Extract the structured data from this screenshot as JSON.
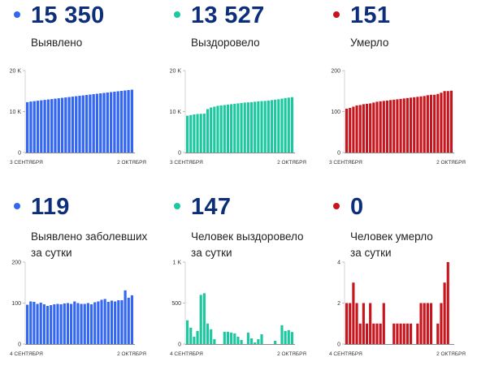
{
  "panels": [
    {
      "value": "15 350",
      "label_lines": [
        "Выявлено"
      ],
      "color": "#3367f2",
      "chart_data": {
        "type": "bar",
        "x_start_label": "3 СЕНТЯБРЯ",
        "x_end_label": "2 ОКТЯБРЯ",
        "yticks": [
          {
            "v": 0,
            "t": "0"
          },
          {
            "v": 10000,
            "t": "10 K"
          },
          {
            "v": 20000,
            "t": "20 K"
          }
        ],
        "ylim": [
          0,
          20000
        ],
        "values": [
          12300,
          12450,
          12550,
          12650,
          12750,
          12850,
          12950,
          13050,
          13150,
          13250,
          13350,
          13450,
          13550,
          13650,
          13750,
          13850,
          13950,
          14050,
          14150,
          14250,
          14350,
          14450,
          14550,
          14650,
          14750,
          14850,
          14950,
          15050,
          15150,
          15250,
          15350
        ]
      }
    },
    {
      "value": "13 527",
      "label_lines": [
        "Выздоровело"
      ],
      "color": "#1dc7a0",
      "chart_data": {
        "type": "bar",
        "x_start_label": "3 СЕНТЯБРЯ",
        "x_end_label": "2 ОКТЯБРЯ",
        "yticks": [
          {
            "v": 0,
            "t": "0"
          },
          {
            "v": 10000,
            "t": "10 K"
          },
          {
            "v": 20000,
            "t": "20 K"
          }
        ],
        "ylim": [
          0,
          20000
        ],
        "values": [
          9000,
          9150,
          9300,
          9400,
          9450,
          9500,
          10600,
          11000,
          11200,
          11400,
          11500,
          11600,
          11700,
          11800,
          11900,
          12000,
          12100,
          12200,
          12250,
          12300,
          12400,
          12500,
          12550,
          12600,
          12700,
          12800,
          12900,
          13000,
          13150,
          13300,
          13400,
          13527
        ]
      }
    },
    {
      "value": "151",
      "label_lines": [
        "Умерло"
      ],
      "color": "#c7151e",
      "chart_data": {
        "type": "bar",
        "x_start_label": "3 СЕНТЯБРЯ",
        "x_end_label": "2 ОКТЯБРЯ",
        "yticks": [
          {
            "v": 0,
            "t": "0"
          },
          {
            "v": 100,
            "t": "100"
          },
          {
            "v": 200,
            "t": "200"
          }
        ],
        "ylim": [
          0,
          200
        ],
        "values": [
          107,
          109,
          112,
          115,
          116,
          118,
          119,
          120,
          122,
          124,
          125,
          126,
          127,
          128,
          129,
          130,
          131,
          132,
          133,
          134,
          135,
          136,
          137,
          138,
          140,
          141,
          141,
          143,
          146,
          150,
          150,
          151
        ]
      }
    },
    {
      "value": "119",
      "label_lines": [
        "Выявлено заболевших",
        "за сутки"
      ],
      "color": "#3367f2",
      "chart_data": {
        "type": "bar",
        "x_start_label": "4 СЕНТЯБРЯ",
        "x_end_label": "2 ОКТЯБРЯ",
        "yticks": [
          {
            "v": 0,
            "t": "0"
          },
          {
            "v": 100,
            "t": "100"
          },
          {
            "v": 200,
            "t": "200"
          }
        ],
        "ylim": [
          0,
          200
        ],
        "values": [
          96,
          104,
          103,
          98,
          101,
          97,
          93,
          95,
          97,
          98,
          97,
          99,
          100,
          98,
          104,
          100,
          98,
          98,
          100,
          97,
          102,
          104,
          108,
          110,
          103,
          106,
          104,
          107,
          107,
          131,
          113,
          119
        ]
      }
    },
    {
      "value": "147",
      "label_lines": [
        "Человек выздоровело",
        "за сутки"
      ],
      "color": "#1dc7a0",
      "chart_data": {
        "type": "bar",
        "x_start_label": "4 СЕНТЯБРЯ",
        "x_end_label": "2 ОКТЯБРЯ",
        "yticks": [
          {
            "v": 0,
            "t": "0"
          },
          {
            "v": 500,
            "t": "500"
          },
          {
            "v": 1000,
            "t": "1 K"
          }
        ],
        "ylim": [
          0,
          1000
        ],
        "values": [
          290,
          200,
          90,
          160,
          600,
          620,
          250,
          180,
          60,
          0,
          0,
          150,
          150,
          140,
          130,
          90,
          50,
          0,
          140,
          70,
          20,
          60,
          120,
          0,
          0,
          0,
          40,
          0,
          230,
          160,
          170,
          147
        ]
      }
    },
    {
      "value": "0",
      "label_lines": [
        "Человек умерло",
        "за сутки"
      ],
      "color": "#c7151e",
      "chart_data": {
        "type": "bar",
        "x_start_label": "4 СЕНТЯБРЯ",
        "x_end_label": "2 ОКТЯБРЯ",
        "yticks": [
          {
            "v": 0,
            "t": "0"
          },
          {
            "v": 2,
            "t": "2"
          },
          {
            "v": 4,
            "t": "4"
          }
        ],
        "ylim": [
          0,
          4
        ],
        "values": [
          2,
          2,
          3,
          2,
          1,
          2,
          1,
          2,
          1,
          1,
          1,
          2,
          0,
          0,
          1,
          1,
          1,
          1,
          1,
          1,
          0,
          1,
          2,
          2,
          2,
          2,
          0,
          1,
          2,
          3,
          4,
          0
        ]
      }
    }
  ]
}
